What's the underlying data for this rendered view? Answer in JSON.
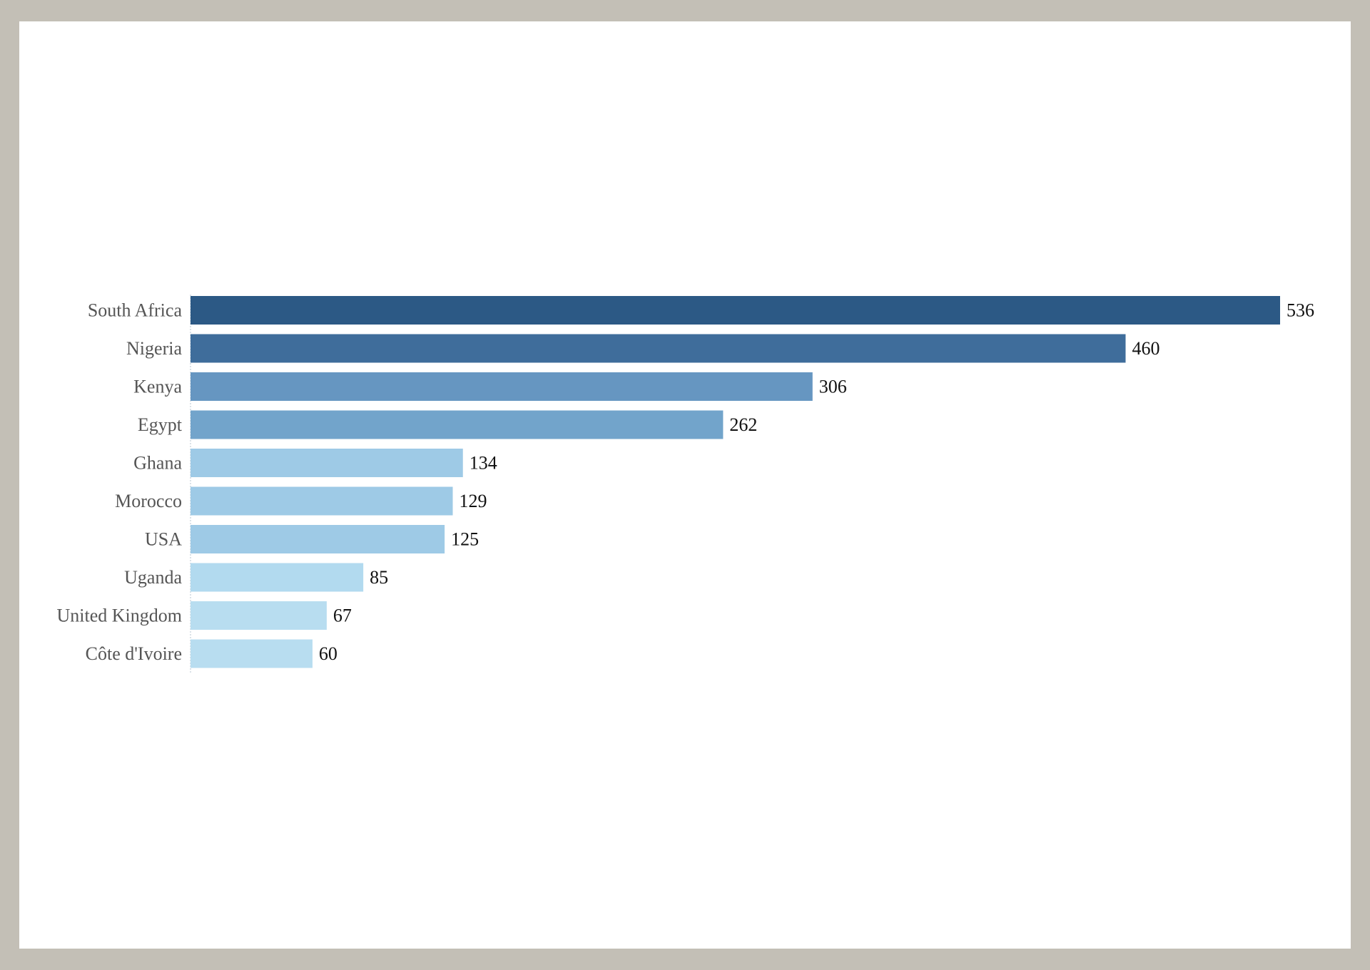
{
  "chart_data": {
    "type": "bar",
    "orientation": "horizontal",
    "categories": [
      "South Africa",
      "Nigeria",
      "Kenya",
      "Egypt",
      "Ghana",
      "Morocco",
      "USA",
      "Uganda",
      "United Kingdom",
      "Côte d'Ivoire"
    ],
    "values": [
      536,
      460,
      306,
      262,
      134,
      129,
      125,
      85,
      67,
      60
    ],
    "value_labels": [
      "536",
      "460",
      "306",
      "262",
      "134",
      "129",
      "125",
      "85",
      "67",
      "60"
    ],
    "colors": [
      "#2c5985",
      "#3f6d9b",
      "#6696c1",
      "#72a4cb",
      "#9ecae6",
      "#9ecae6",
      "#9ecae6",
      "#b2daef",
      "#b8ddf0",
      "#b8ddf0"
    ],
    "title": "",
    "xlabel": "",
    "ylabel": "",
    "xlim": [
      0,
      536
    ],
    "grid": false,
    "legend": "none"
  }
}
